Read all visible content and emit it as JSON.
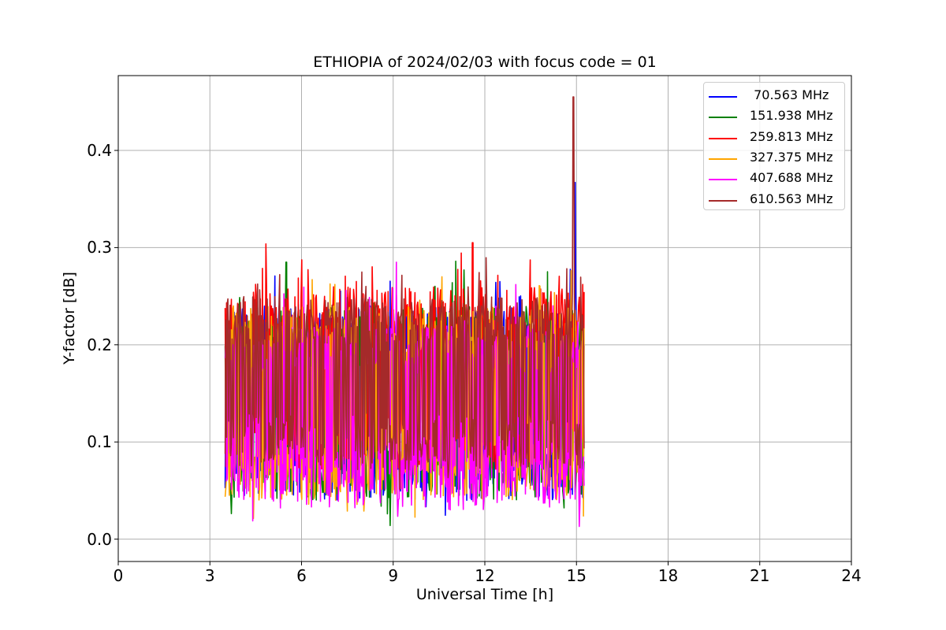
{
  "chart_data": {
    "type": "line",
    "title": "ETHIOPIA of 2024/02/03 with focus code = 01",
    "xlabel": "Universal Time [h]",
    "ylabel": "Y-factor [dB]",
    "xlim": [
      0,
      24
    ],
    "ylim": [
      -0.023,
      0.477
    ],
    "xticks": [
      0,
      3,
      6,
      9,
      12,
      15,
      18,
      21,
      24
    ],
    "xtick_labels": [
      "0",
      "3",
      "6",
      "9",
      "12",
      "15",
      "18",
      "21",
      "24"
    ],
    "yticks": [
      0.0,
      0.1,
      0.2,
      0.3,
      0.4
    ],
    "ytick_labels": [
      "0.0",
      "0.1",
      "0.2",
      "0.3",
      "0.4"
    ],
    "grid": true,
    "legend_position": "upper-right",
    "series": [
      {
        "name": " 70.563 MHz",
        "color": "#0000ff",
        "time_range": [
          3.5,
          15.25
        ],
        "band": [
          0.04,
          0.24
        ],
        "peak": {
          "x": 14.95,
          "y": 0.367
        }
      },
      {
        "name": "151.938 MHz",
        "color": "#008000",
        "time_range": [
          3.5,
          15.25
        ],
        "band": [
          0.04,
          0.24
        ],
        "peak": {
          "x": 5.5,
          "y": 0.285
        }
      },
      {
        "name": "259.813 MHz",
        "color": "#ff0000",
        "time_range": [
          3.5,
          15.25
        ],
        "band": [
          0.07,
          0.26
        ],
        "peak": {
          "x": 11.6,
          "y": 0.305
        }
      },
      {
        "name": "327.375 MHz",
        "color": "#ffa500",
        "time_range": [
          3.5,
          15.25
        ],
        "band": [
          0.04,
          0.24
        ],
        "peak": {
          "x": 10.6,
          "y": 0.27
        }
      },
      {
        "name": "407.688 MHz",
        "color": "#ff00ff",
        "time_range": [
          3.5,
          15.25
        ],
        "band": [
          0.03,
          0.22
        ],
        "peak": {
          "x": 9.1,
          "y": 0.285
        }
      },
      {
        "name": "610.563 MHz",
        "color": "#a52a2a",
        "time_range": [
          3.5,
          15.25
        ],
        "band": [
          0.07,
          0.25
        ],
        "peak": {
          "x": 14.9,
          "y": 0.455
        }
      }
    ]
  }
}
